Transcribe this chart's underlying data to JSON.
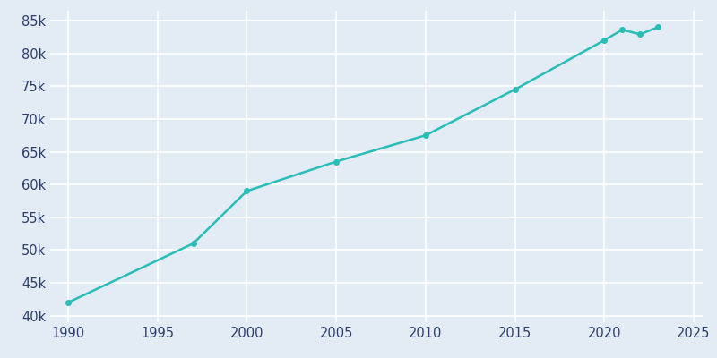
{
  "years": [
    1990,
    1997,
    2000,
    2005,
    2010,
    2015,
    2020,
    2021,
    2022,
    2023
  ],
  "population": [
    42000,
    51000,
    59000,
    63500,
    67500,
    74500,
    82000,
    83600,
    82900,
    84000
  ],
  "line_color": "#29BDB8",
  "marker_style": "o",
  "marker_size": 4,
  "line_width": 1.8,
  "bg_color": "#E3EBF5",
  "grid_color": "#FFFFFF",
  "tick_label_color": "#2C3E6B",
  "xlim": [
    1989,
    2025.5
  ],
  "ylim": [
    39000,
    86500
  ],
  "xticks": [
    1990,
    1995,
    2000,
    2005,
    2010,
    2015,
    2020,
    2025
  ],
  "yticks": [
    40000,
    45000,
    50000,
    55000,
    60000,
    65000,
    70000,
    75000,
    80000,
    85000
  ],
  "tick_fontsize": 10.5,
  "fig_bg_color": "#E3EBF5"
}
